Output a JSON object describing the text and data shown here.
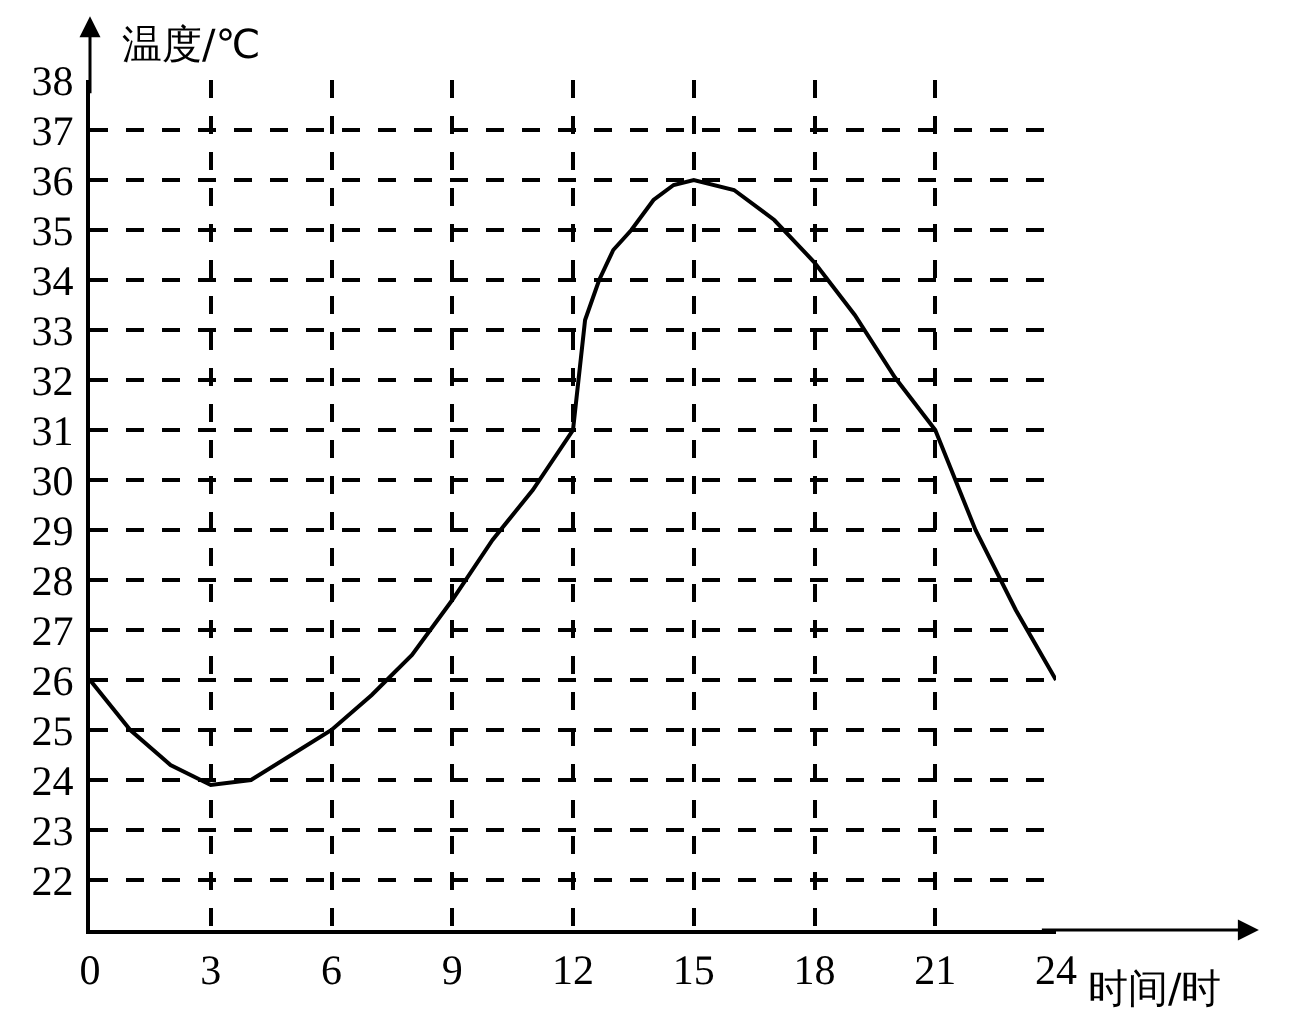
{
  "chart_data": {
    "type": "line",
    "xlabel": "时间/时",
    "ylabel": "温度/℃",
    "xlim": [
      0,
      24
    ],
    "ylim": [
      21,
      38
    ],
    "xticks": [
      0,
      3,
      6,
      9,
      12,
      15,
      18,
      21,
      24
    ],
    "yticks": [
      22,
      23,
      24,
      25,
      26,
      27,
      28,
      29,
      30,
      31,
      32,
      33,
      34,
      35,
      36,
      37,
      38
    ],
    "grid": true,
    "marker": "none",
    "line_style": "solid",
    "series": [
      {
        "color": "#000000",
        "x": [
          0,
          1,
          2,
          3,
          4,
          5,
          6,
          7,
          8,
          9,
          10,
          11,
          12,
          12.3,
          12.65,
          13,
          13.45,
          14,
          14.5,
          15,
          16,
          17,
          18,
          19,
          20,
          21,
          22,
          23,
          24
        ],
        "values": [
          26,
          25,
          24.3,
          23.9,
          24,
          24.5,
          25,
          25.7,
          26.5,
          27.6,
          28.8,
          29.8,
          31,
          33.2,
          34,
          34.6,
          35,
          35.6,
          35.9,
          36,
          35.8,
          35.2,
          34.35,
          33.3,
          32.05,
          31,
          29,
          27.4,
          26
        ]
      }
    ]
  }
}
